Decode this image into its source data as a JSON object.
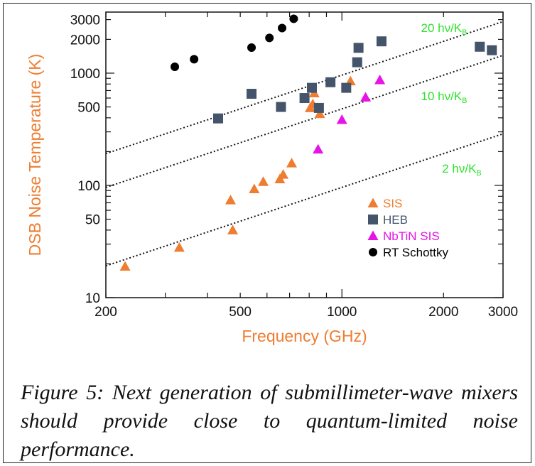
{
  "chart_data": {
    "type": "scatter",
    "xlabel": "Frequency (GHz)",
    "ylabel": "DSB Noise Temperature (K)",
    "xscale": "log",
    "yscale": "log",
    "xlim": [
      200,
      3000
    ],
    "ylim": [
      10,
      3500
    ],
    "x_ticks": [
      200,
      500,
      1000,
      2000,
      3000
    ],
    "y_ticks": [
      10,
      50,
      100,
      500,
      1000,
      2000,
      3000
    ],
    "grid": false,
    "legend_position": "bottom-right",
    "series": [
      {
        "name": "SIS",
        "marker": "triangle",
        "color": "#ee7d31",
        "points": [
          [
            228,
            19
          ],
          [
            330,
            28
          ],
          [
            468,
            74
          ],
          [
            475,
            40
          ],
          [
            550,
            93
          ],
          [
            585,
            108
          ],
          [
            655,
            114
          ],
          [
            670,
            125
          ],
          [
            710,
            158
          ],
          [
            805,
            490
          ],
          [
            820,
            530
          ],
          [
            828,
            665
          ],
          [
            860,
            435
          ],
          [
            1060,
            850
          ]
        ]
      },
      {
        "name": "HEB",
        "marker": "square",
        "color": "#44546a",
        "points": [
          [
            430,
            395
          ],
          [
            540,
            655
          ],
          [
            660,
            500
          ],
          [
            775,
            600
          ],
          [
            815,
            740
          ],
          [
            855,
            490
          ],
          [
            925,
            830
          ],
          [
            1030,
            740
          ],
          [
            1110,
            1250
          ],
          [
            1120,
            1680
          ],
          [
            1310,
            1920
          ],
          [
            2560,
            1720
          ],
          [
            2780,
            1600
          ]
        ]
      },
      {
        "name": "NbTiN SIS",
        "marker": "triangle",
        "color": "#e713e7",
        "points": [
          [
            850,
            210
          ],
          [
            1000,
            385
          ],
          [
            1175,
            610
          ],
          [
            1295,
            870
          ]
        ]
      },
      {
        "name": "RT Schottky",
        "marker": "circle",
        "color": "#000000",
        "points": [
          [
            320,
            1140
          ],
          [
            365,
            1330
          ],
          [
            540,
            1690
          ],
          [
            610,
            2060
          ],
          [
            665,
            2520
          ],
          [
            720,
            3050
          ]
        ]
      }
    ],
    "reference_lines": [
      {
        "label_main": "20 hν/K",
        "label_sub": "B",
        "factor": 20,
        "style": "dotted",
        "label_color": "#2ee22e"
      },
      {
        "label_main": "10 hν/K",
        "label_sub": "B",
        "factor": 10,
        "style": "dotted",
        "label_color": "#2ee22e"
      },
      {
        "label_main": "2 hν/K",
        "label_sub": "B",
        "factor": 2,
        "style": "dotted",
        "label_color": "#2ee22e"
      }
    ],
    "axis_label_color": "#ee7d31"
  },
  "caption": "Figure 5: Next generation of submillimeter-wave mixers should provide close to quantum-limited noise performance."
}
